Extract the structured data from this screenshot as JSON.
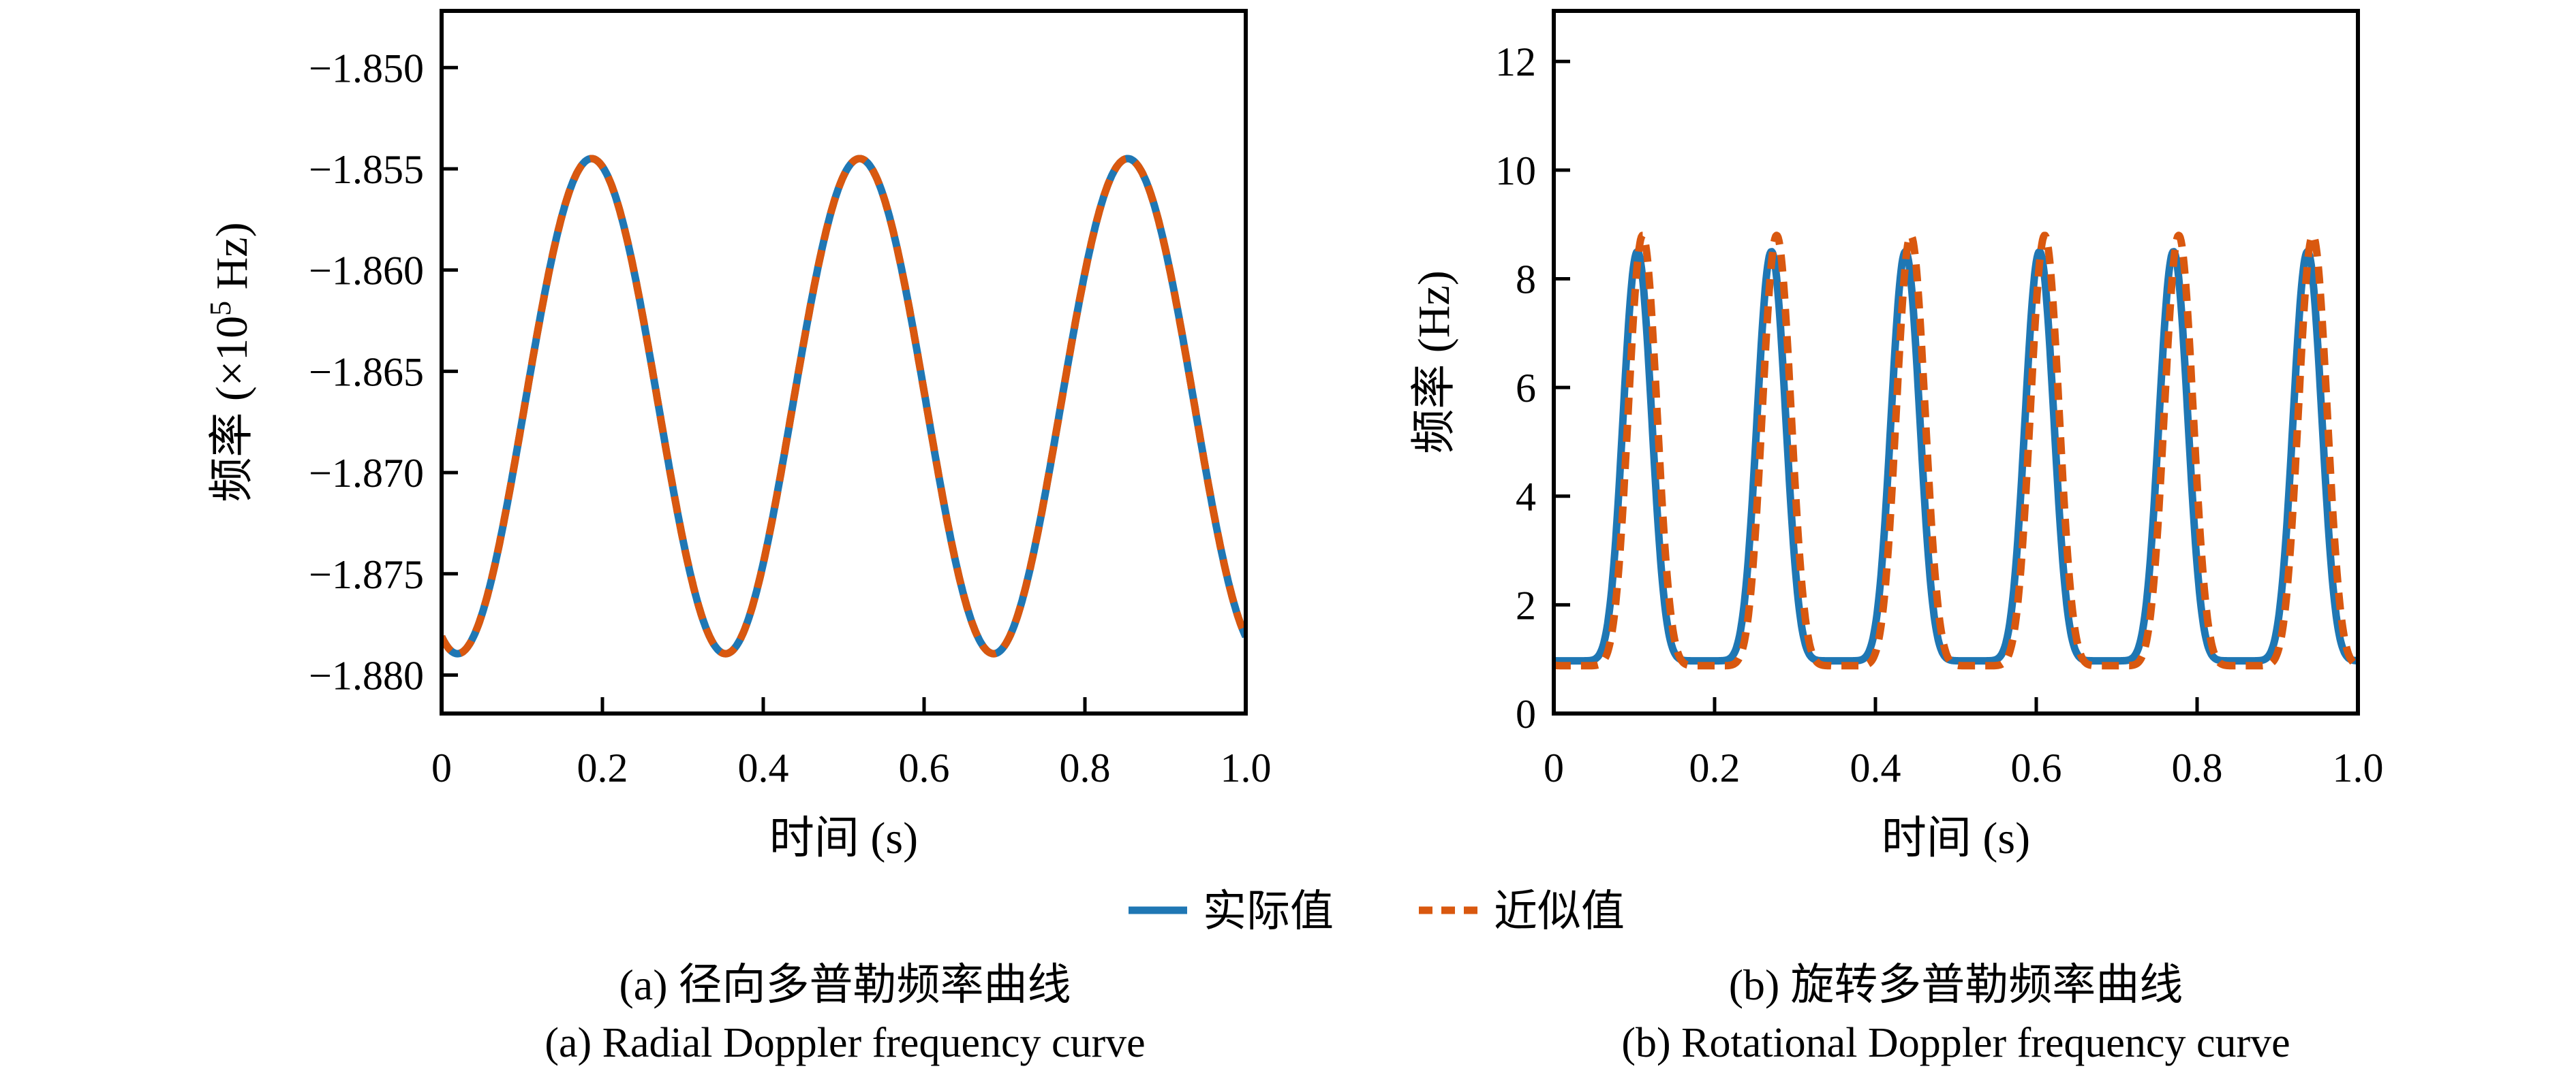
{
  "page": {
    "background": "#ffffff",
    "text_color": "#000000"
  },
  "legend": {
    "items": [
      {
        "label": "实际值",
        "color": "#1f77b4",
        "style": "solid"
      },
      {
        "label": "近似值",
        "color": "#d9580f",
        "style": "dashed"
      }
    ]
  },
  "captions": {
    "left_zh": "(a) 径向多普勒频率曲线",
    "left_en": "(a) Radial Doppler frequency curve",
    "right_zh": "(b) 旋转多普勒频率曲线",
    "right_en": "(b) Rotational Doppler frequency curve"
  },
  "chart_data": [
    {
      "id": "radial-doppler",
      "type": "line",
      "title": "",
      "xlabel": "时间 (s)",
      "ylabel": "频率 (×10⁵ Hz)",
      "ylabel_parts": {
        "prefix": "频率 (×10",
        "sup": "5",
        "suffix": " Hz)"
      },
      "xlim": [
        0,
        1
      ],
      "ylim": [
        -1.8819,
        -1.8472
      ],
      "xticks": [
        0,
        0.2,
        0.4,
        0.6,
        0.8,
        1.0
      ],
      "xtick_labels": [
        "0",
        "0.2",
        "0.4",
        "0.6",
        "0.8",
        "1.0"
      ],
      "yticks": [
        -1.85,
        -1.855,
        -1.86,
        -1.865,
        -1.87,
        -1.875,
        -1.88
      ],
      "ytick_labels": [
        "−1.850",
        "−1.855",
        "−1.860",
        "−1.865",
        "−1.870",
        "−1.875",
        "−1.880"
      ],
      "grid": false,
      "legend_position": "none",
      "series": [
        {
          "name": "实际值",
          "color": "#1f77b4",
          "style": "solid",
          "model": "cosine",
          "mean": -1.86672,
          "amplitude": 0.012225,
          "period": 0.33333,
          "peak_t": 0.1865
        },
        {
          "name": "近似值",
          "color": "#d9580f",
          "style": "dashed",
          "model": "cosine",
          "mean": -1.86672,
          "amplitude": 0.012225,
          "period": 0.33333,
          "peak_t": 0.1865
        }
      ],
      "key_points": {
        "peak_times": [
          0.187,
          0.52,
          0.853
        ],
        "peak_value": -1.8545,
        "valley_times": [
          0.02,
          0.353,
          0.687
        ],
        "valley_value": -1.879
      }
    },
    {
      "id": "rotational-doppler",
      "type": "line",
      "title": "",
      "xlabel": "时间 (s)",
      "ylabel": "频率 (Hz)",
      "ylabel_parts": {
        "prefix": "频率 (Hz)",
        "sup": "",
        "suffix": ""
      },
      "xlim": [
        0,
        1
      ],
      "ylim": [
        0,
        12.93
      ],
      "xticks": [
        0,
        0.2,
        0.4,
        0.6,
        0.8,
        1.0
      ],
      "xtick_labels": [
        "0",
        "0.2",
        "0.4",
        "0.6",
        "0.8",
        "1.0"
      ],
      "yticks": [
        0,
        2,
        4,
        6,
        8,
        10,
        12
      ],
      "ytick_labels": [
        "0",
        "2",
        "4",
        "6",
        "8",
        "10",
        "12"
      ],
      "grid": false,
      "legend_position": "none",
      "series": [
        {
          "name": "实际值",
          "color": "#1f77b4",
          "style": "solid",
          "model": "raised_cosine_power",
          "valley": 0.97,
          "peak": 8.5,
          "period": 0.16667,
          "peak_t": 0.104,
          "sharpness": 4.5
        },
        {
          "name": "近似值",
          "color": "#d9580f",
          "style": "dashed",
          "model": "raised_cosine_power",
          "valley": 0.88,
          "peak": 8.8,
          "period": 0.16667,
          "peak_t": 0.1105,
          "sharpness": 4.5
        }
      ],
      "key_points": {
        "peak_times_actual": [
          0.104,
          0.271,
          0.437,
          0.604,
          0.771,
          0.938
        ],
        "peak_value_actual": 8.5,
        "peak_value_approx": 8.8,
        "valley_value_actual": 0.97,
        "valley_value_approx": 0.88
      }
    }
  ]
}
